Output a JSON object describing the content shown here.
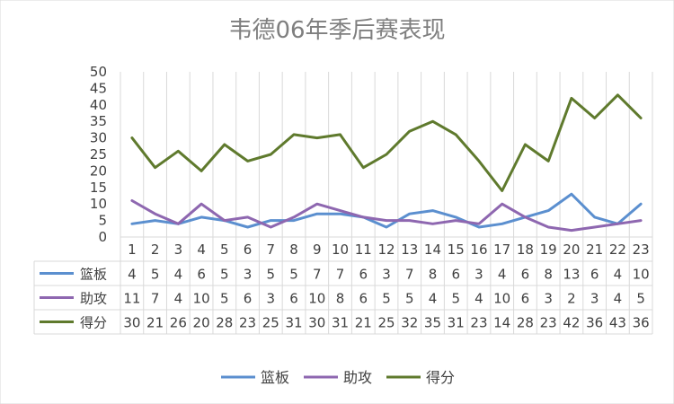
{
  "chart_data": {
    "type": "line",
    "title": "韦德06年季后赛表现",
    "categories": [
      "1",
      "2",
      "3",
      "4",
      "5",
      "6",
      "7",
      "8",
      "9",
      "10",
      "11",
      "12",
      "13",
      "14",
      "15",
      "16",
      "17",
      "18",
      "19",
      "20",
      "21",
      "22",
      "23"
    ],
    "ylim": [
      0,
      50
    ],
    "yticks": [
      "0",
      "5",
      "10",
      "15",
      "20",
      "25",
      "30",
      "35",
      "40",
      "45",
      "50"
    ],
    "grid": "vertical",
    "legend_position": "bottom",
    "data_table": true,
    "series": [
      {
        "name": "篮板",
        "color": "#5b8fcf",
        "values": [
          4,
          5,
          4,
          6,
          5,
          3,
          5,
          5,
          7,
          7,
          6,
          3,
          7,
          8,
          6,
          3,
          4,
          6,
          8,
          13,
          6,
          4,
          10
        ]
      },
      {
        "name": "助攻",
        "color": "#8e67b0",
        "values": [
          11,
          7,
          4,
          10,
          5,
          6,
          3,
          6,
          10,
          8,
          6,
          5,
          5,
          4,
          5,
          4,
          10,
          6,
          3,
          2,
          3,
          4,
          5
        ]
      },
      {
        "name": "得分",
        "color": "#5f7a2d",
        "values": [
          30,
          21,
          26,
          20,
          28,
          23,
          25,
          31,
          30,
          31,
          21,
          25,
          32,
          35,
          31,
          23,
          14,
          28,
          23,
          42,
          36,
          43,
          36
        ]
      }
    ]
  }
}
